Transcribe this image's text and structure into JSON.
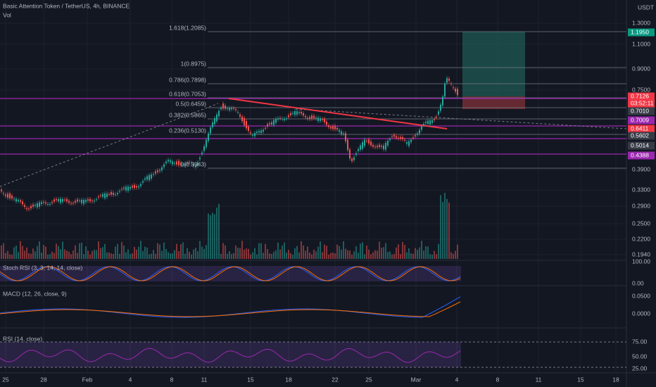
{
  "header": {
    "symbol": "Basic Attention Token / TetherUS, 4h, BINANCE",
    "volume": "Vol",
    "currency": "USDT"
  },
  "price_axis": [
    "1.3000",
    "1.1000",
    "0.9000",
    "0.7500",
    "0.3900",
    "0.3300",
    "0.2900",
    "0.2500",
    "0.2200",
    "0.1940"
  ],
  "price_tags": [
    "1.1950",
    "0.7126",
    "03:52:11",
    "0.7010",
    "0.7009",
    "0.6411",
    "0.5602",
    "0.5014",
    "0.4388"
  ],
  "fib_levels": [
    "1.618(1.2085)",
    "1(0.8975)",
    "0.786(0.7898)",
    "0.618(0.7053)",
    "0.5(0.6459)",
    "0.382(0.5865)",
    "0.236(0.5130)",
    "0(0.3943)"
  ],
  "stoch_rsi": {
    "title": "Stoch RSI (3, 3, 14, 14, close)",
    "axis": [
      "100.00",
      "0.00"
    ]
  },
  "macd": {
    "title": "MACD (12, 26, close, 9)",
    "axis": [
      "0.0500",
      "0.0000"
    ]
  },
  "rsi": {
    "title": "RSI (14, close)",
    "axis": [
      "75.00",
      "50.00",
      "25.00"
    ]
  },
  "time_axis": [
    "25",
    "28",
    "Feb",
    "4",
    "8",
    "11",
    "15",
    "18",
    "22",
    "25",
    "Mar",
    "4",
    "8",
    "11",
    "15",
    "18"
  ]
}
